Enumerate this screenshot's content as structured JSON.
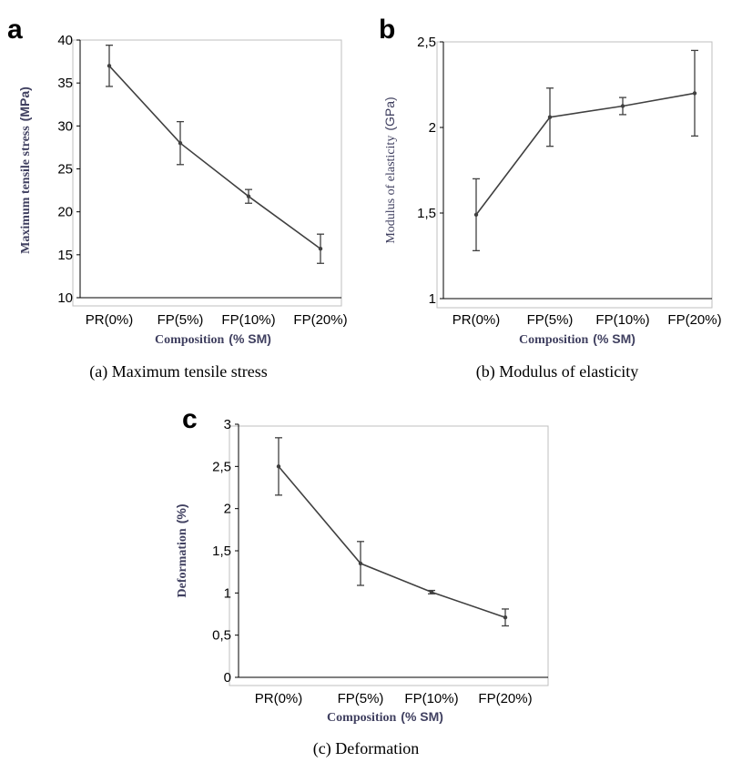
{
  "charts": [
    {
      "panel_letter": "a",
      "caption": "(a) Maximum tensile stress",
      "ylabel_main": "Maximum tensile stress",
      "ylabel_unit": "(MPa)",
      "xlabel_main": "Composition",
      "xlabel_unit": "(% SM)",
      "ytick_labels": [
        "10",
        "15",
        "20",
        "25",
        "30",
        "35",
        "40"
      ]
    },
    {
      "panel_letter": "b",
      "caption": "(b) Modulus of elasticity",
      "ylabel_main": "Modulus of elasticity",
      "ylabel_unit": "(GPa)",
      "xlabel_main": "Composition",
      "xlabel_unit": "(% SM)",
      "ytick_labels": [
        "1",
        "1,5",
        "2",
        "2,5"
      ]
    },
    {
      "panel_letter": "c",
      "caption": "(c) Deformation",
      "ylabel_main": "Deformation",
      "ylabel_unit": "(%)",
      "xlabel_main": "Composition",
      "xlabel_unit": "(% SM)",
      "ytick_labels": [
        "0",
        "0,5",
        "1",
        "1,5",
        "2",
        "2,5",
        "3"
      ]
    }
  ],
  "chart_data": [
    {
      "type": "line",
      "categories": [
        "PR(0%)",
        "FP(5%)",
        "FP(10%)",
        "FP(20%)"
      ],
      "values": [
        37.0,
        28.0,
        21.8,
        15.7
      ],
      "error": [
        2.4,
        2.5,
        0.8,
        1.7
      ],
      "ylim": [
        10,
        40
      ],
      "yticks": [
        10,
        15,
        20,
        25,
        30,
        35,
        40
      ],
      "grid": false,
      "color": "#404040"
    },
    {
      "type": "line",
      "categories": [
        "PR(0%)",
        "FP(5%)",
        "FP(10%)",
        "FP(20%)"
      ],
      "values": [
        1.49,
        2.06,
        2.125,
        2.2
      ],
      "error": [
        0.21,
        0.17,
        0.05,
        0.25
      ],
      "ylim": [
        1,
        2.5
      ],
      "yticks": [
        1,
        1.5,
        2,
        2.5
      ],
      "grid": false,
      "color": "#404040"
    },
    {
      "type": "line",
      "categories": [
        "PR(0%)",
        "FP(5%)",
        "FP(10%)",
        "FP(20%)"
      ],
      "values": [
        2.5,
        1.35,
        1.01,
        0.71
      ],
      "error": [
        0.34,
        0.26,
        0.02,
        0.1
      ],
      "ylim": [
        0,
        3
      ],
      "yticks": [
        0,
        0.5,
        1,
        1.5,
        2,
        2.5,
        3
      ],
      "grid": false,
      "color": "#404040"
    }
  ]
}
